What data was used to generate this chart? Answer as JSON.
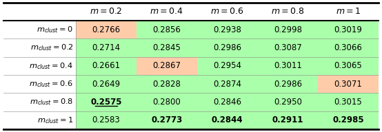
{
  "col_headers": [
    "m = 0.2",
    "m = 0.4",
    "m = 0.6",
    "m = 0.8",
    "m = 1"
  ],
  "row_headers": [
    "m_{clust} = 0",
    "m_{clust} = 0.2",
    "m_{clust} = 0.4",
    "m_{clust} = 0.6",
    "m_{clust} = 0.8",
    "m_{clust} = 1"
  ],
  "values": [
    [
      "0.2766",
      "0.2856",
      "0.2938",
      "0.2998",
      "0.3019"
    ],
    [
      "0.2714",
      "0.2845",
      "0.2986",
      "0.3087",
      "0.3066"
    ],
    [
      "0.2661",
      "0.2867",
      "0.2954",
      "0.3011",
      "0.3065"
    ],
    [
      "0.2649",
      "0.2828",
      "0.2874",
      "0.2986",
      "0.3071"
    ],
    [
      "0.2575",
      "0.2800",
      "0.2846",
      "0.2950",
      "0.3015"
    ],
    [
      "0.2583",
      "0.2773",
      "0.2844",
      "0.2911",
      "0.2985"
    ]
  ],
  "cell_colors": [
    [
      "#FFCCAA",
      "#AAFFAA",
      "#AAFFAA",
      "#AAFFAA",
      "#AAFFAA"
    ],
    [
      "#AAFFAA",
      "#AAFFAA",
      "#AAFFAA",
      "#AAFFAA",
      "#AAFFAA"
    ],
    [
      "#AAFFAA",
      "#FFCCAA",
      "#AAFFAA",
      "#AAFFAA",
      "#AAFFAA"
    ],
    [
      "#AAFFAA",
      "#AAFFAA",
      "#AAFFAA",
      "#AAFFAA",
      "#FFCCAA"
    ],
    [
      "#AAFFAA",
      "#AAFFAA",
      "#AAFFAA",
      "#AAFFAA",
      "#AAFFAA"
    ],
    [
      "#AAFFAA",
      "#AAFFAA",
      "#AAFFAA",
      "#AAFFAA",
      "#AAFFAA"
    ]
  ],
  "bold_cells": [
    [
      false,
      false,
      false,
      false,
      false
    ],
    [
      false,
      false,
      false,
      false,
      false
    ],
    [
      false,
      false,
      false,
      false,
      false
    ],
    [
      false,
      false,
      false,
      false,
      false
    ],
    [
      true,
      false,
      false,
      false,
      false
    ],
    [
      false,
      true,
      true,
      true,
      true
    ]
  ],
  "underline_cells": [
    [
      false,
      false,
      false,
      false,
      false
    ],
    [
      false,
      false,
      false,
      false,
      false
    ],
    [
      false,
      false,
      false,
      false,
      false
    ],
    [
      false,
      false,
      false,
      false,
      false
    ],
    [
      true,
      false,
      false,
      false,
      false
    ],
    [
      false,
      false,
      false,
      false,
      false
    ]
  ],
  "bg_color": "#FFFFFF",
  "green_light": "#AAFFAA",
  "salmon_light": "#FFCCAA"
}
